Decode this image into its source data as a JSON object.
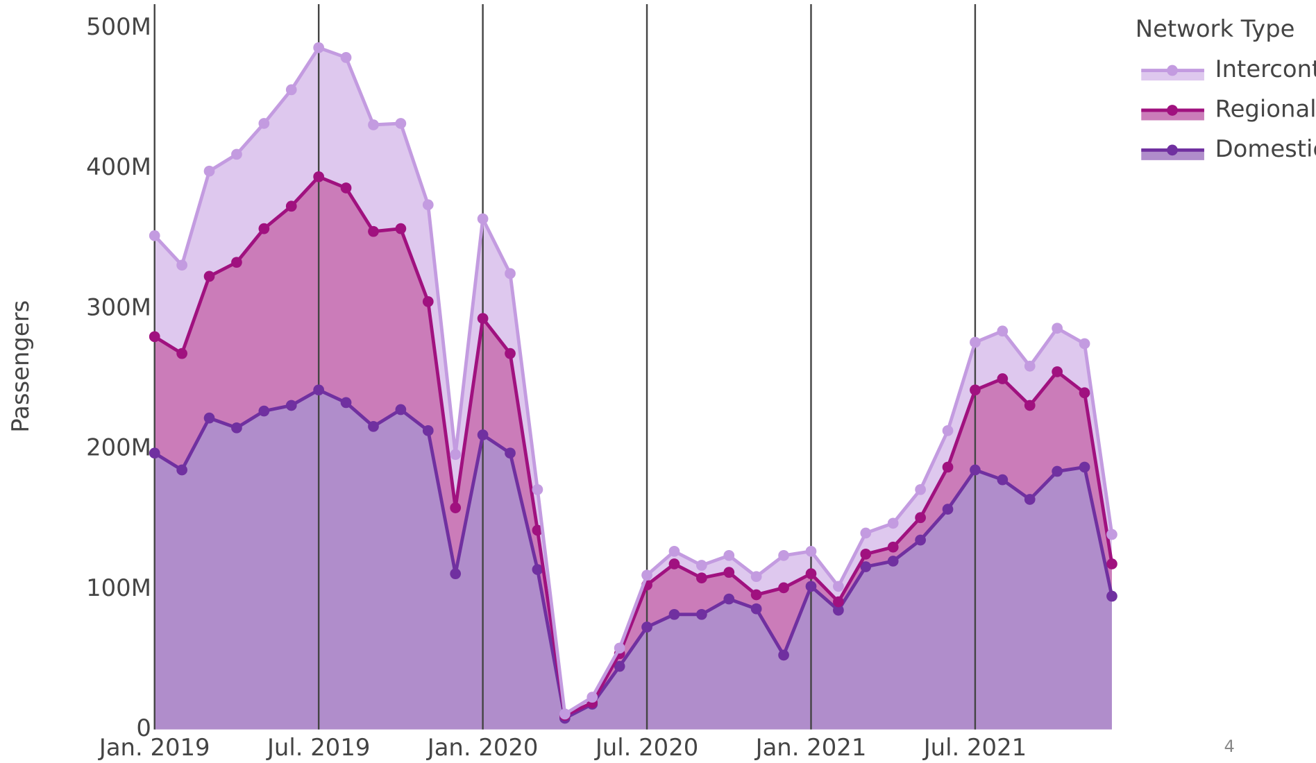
{
  "chart_data": {
    "type": "stacked-area",
    "y_label": "Passengers",
    "legend_title": "Network Type",
    "legend": "top-right",
    "annotation": "4",
    "x": [
      "2019-01",
      "2019-02",
      "2019-03",
      "2019-04",
      "2019-05",
      "2019-06",
      "2019-07",
      "2019-08",
      "2019-09",
      "2019-10",
      "2019-11",
      "2019-12",
      "2020-01",
      "2020-02",
      "2020-03",
      "2020-04",
      "2020-05",
      "2020-06",
      "2020-07",
      "2020-08",
      "2020-09",
      "2020-10",
      "2020-11",
      "2020-12",
      "2021-01",
      "2021-02",
      "2021-03",
      "2021-04",
      "2021-05",
      "2021-06",
      "2021-07",
      "2021-08",
      "2021-09",
      "2021-10",
      "2021-11",
      "2021-12"
    ],
    "xlim": [
      "2019-01",
      "2021-12"
    ],
    "xticks": [
      {
        "value": "2019-01",
        "label": "Jan. 2019"
      },
      {
        "value": "2019-07",
        "label": "Jul. 2019"
      },
      {
        "value": "2020-01",
        "label": "Jan. 2020"
      },
      {
        "value": "2020-07",
        "label": "Jul. 2020"
      },
      {
        "value": "2021-01",
        "label": "Jan. 2021"
      },
      {
        "value": "2021-07",
        "label": "Jul. 2021"
      }
    ],
    "ylim": [
      0,
      517000000
    ],
    "yticks": [
      0,
      {
        "value": 100000000,
        "label": "100M"
      },
      {
        "value": 200000000,
        "label": "200M"
      },
      {
        "value": 300000000,
        "label": "300M"
      },
      {
        "value": 400000000,
        "label": "400M"
      },
      {
        "value": 500000000,
        "label": "500M"
      }
    ],
    "grid": "x",
    "series": [
      {
        "name": "Intercontinental",
        "color": "#c39be0",
        "values": [
          72000000,
          63000000,
          75000000,
          77000000,
          75000000,
          83000000,
          92000000,
          93000000,
          76000000,
          75000000,
          69000000,
          38000000,
          71000000,
          57000000,
          29000000,
          1000000,
          4000000,
          4000000,
          7000000,
          9000000,
          9000000,
          12000000,
          13000000,
          23000000,
          16000000,
          11000000,
          15000000,
          17000000,
          20000000,
          26000000,
          34000000,
          34000000,
          28000000,
          31000000,
          35000000,
          21000000
        ]
      },
      {
        "name": "Regional",
        "color": "#a0117f",
        "values": [
          83000000,
          83000000,
          101000000,
          118000000,
          130000000,
          142000000,
          152000000,
          153000000,
          139000000,
          129000000,
          92000000,
          47000000,
          83000000,
          71000000,
          28000000,
          2000000,
          1000000,
          9000000,
          30000000,
          36000000,
          26000000,
          19000000,
          10000000,
          48000000,
          9000000,
          6000000,
          9000000,
          10000000,
          16000000,
          30000000,
          57000000,
          72000000,
          67000000,
          71000000,
          53000000,
          23000000
        ]
      },
      {
        "name": "Domestic",
        "color": "#7030a0",
        "values": [
          197000000,
          185000000,
          222000000,
          215000000,
          227000000,
          231000000,
          242000000,
          233000000,
          216000000,
          228000000,
          213000000,
          111000000,
          210000000,
          197000000,
          114000000,
          8000000,
          18000000,
          45000000,
          73000000,
          82000000,
          82000000,
          93000000,
          86000000,
          53000000,
          102000000,
          85000000,
          116000000,
          120000000,
          135000000,
          157000000,
          185000000,
          178000000,
          164000000,
          184000000,
          187000000,
          95000000
        ]
      }
    ]
  }
}
